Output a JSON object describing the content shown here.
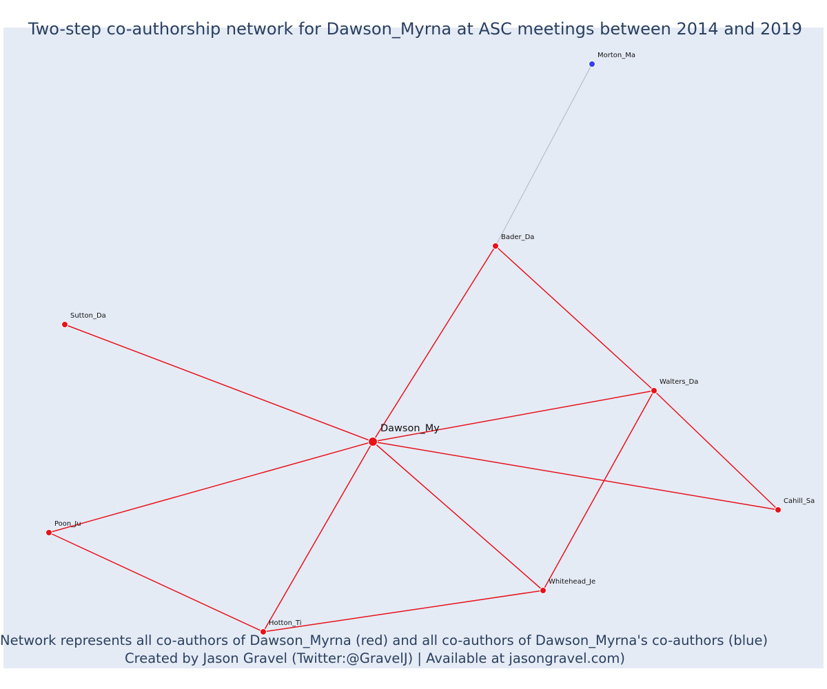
{
  "title": "Two-step co-authorship network for Dawson_Myrna at ASC meetings between 2014 and 2019",
  "caption": {
    "line1": "Network represents all co-authors of Dawson_Myrna (red) and all co-authors of Dawson_Myrna's co-authors (blue)",
    "line2": "Created by Jason Gravel (Twitter:@GravelJ) | Available at jasongravel.com)"
  },
  "colors": {
    "background": "#e5ebf5",
    "first_degree": "#e8111a",
    "second_degree": "#3c3cf0",
    "second_degree_edge": "#b0b4c4",
    "title_text": "#2a3f5f"
  },
  "network": {
    "focal": "Dawson_My",
    "nodes": [
      {
        "id": "dawson",
        "label": "Dawson_My",
        "group": "focal"
      },
      {
        "id": "morton",
        "label": "Morton_Ma",
        "group": "second_degree"
      },
      {
        "id": "bader",
        "label": "Bader_Da",
        "group": "first_degree"
      },
      {
        "id": "sutton",
        "label": "Sutton_Da",
        "group": "first_degree"
      },
      {
        "id": "walters",
        "label": "Walters_Da",
        "group": "first_degree"
      },
      {
        "id": "cahill",
        "label": "Cahill_Sa",
        "group": "first_degree"
      },
      {
        "id": "poon",
        "label": "Poon_Ju",
        "group": "first_degree"
      },
      {
        "id": "whitehead",
        "label": "Whitehead_Je",
        "group": "first_degree"
      },
      {
        "id": "hotton",
        "label": "Hotton_Ti",
        "group": "first_degree"
      }
    ],
    "edges": [
      {
        "source": "morton",
        "target": "bader",
        "group": "second_degree"
      },
      {
        "source": "bader",
        "target": "dawson",
        "group": "first_degree"
      },
      {
        "source": "bader",
        "target": "walters",
        "group": "first_degree"
      },
      {
        "source": "sutton",
        "target": "dawson",
        "group": "first_degree"
      },
      {
        "source": "walters",
        "target": "dawson",
        "group": "first_degree"
      },
      {
        "source": "walters",
        "target": "cahill",
        "group": "first_degree"
      },
      {
        "source": "walters",
        "target": "whitehead",
        "group": "first_degree"
      },
      {
        "source": "cahill",
        "target": "dawson",
        "group": "first_degree"
      },
      {
        "source": "poon",
        "target": "dawson",
        "group": "first_degree"
      },
      {
        "source": "poon",
        "target": "hotton",
        "group": "first_degree"
      },
      {
        "source": "hotton",
        "target": "dawson",
        "group": "first_degree"
      },
      {
        "source": "hotton",
        "target": "whitehead",
        "group": "first_degree"
      },
      {
        "source": "whitehead",
        "target": "dawson",
        "group": "first_degree"
      }
    ]
  }
}
